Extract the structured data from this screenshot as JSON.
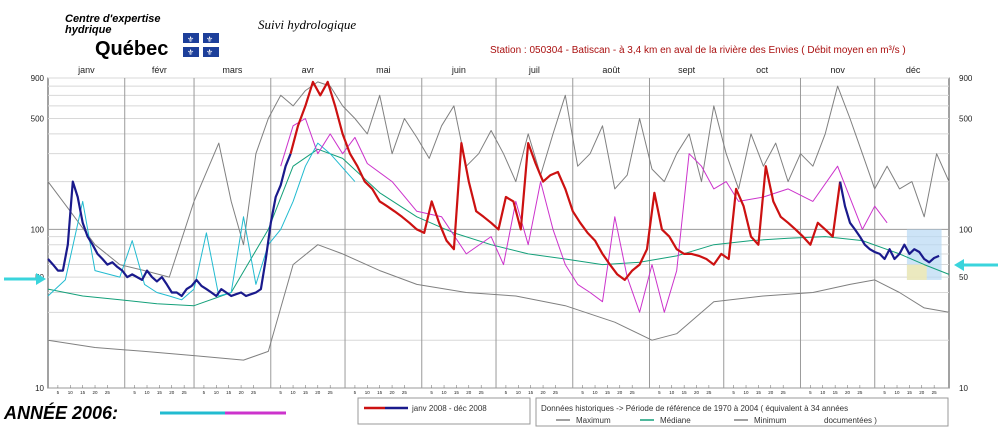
{
  "header": {
    "org_line1": "Centre d'expertise",
    "org_line2": "hydrique",
    "org_name": "Québec",
    "app_title": "Suivi hydrologique",
    "station": "Station : 050304    -    Batiscan - à 3,4 km en aval de la rivière des Envies    ( Débit moyen en m³/s )"
  },
  "footer": {
    "annee_label": "ANNÉE  2006:",
    "legend_current": "janv 2008 - déc 2008",
    "hist_text_1": "Données historiques -> Période de référence  de 1970 à 2004    ( équivalent à 34 années",
    "hist_text_2": "documentées )",
    "legend_max": "Maximum",
    "legend_median": "Médiane",
    "legend_min": "Minimum"
  },
  "colors": {
    "current_before_april": "#1a1a8c",
    "current_after_april": "#cc1111",
    "year_2006_first": "#22bbd0",
    "year_2006_second": "#cc33cc",
    "maximum": "#808080",
    "median": "#14a07a",
    "minimum": "#808080",
    "arrow": "#3ad4dc",
    "highlight_zone": "#b8d8f4",
    "highlight_zone_2": "#f2eab0"
  },
  "chart_data": {
    "type": "line",
    "y_scale": "log",
    "ylim": [
      10,
      900
    ],
    "y_ticks": [
      10,
      50,
      100,
      500,
      900
    ],
    "months": [
      "janv",
      "févr",
      "mars",
      "avr",
      "mai",
      "juin",
      "juil",
      "août",
      "sept",
      "oct",
      "nov",
      "déc"
    ],
    "day_ticks": [
      "5",
      "10",
      "15",
      "20",
      "25"
    ],
    "series": [
      {
        "name": "Maximum",
        "x": [
          1,
          10,
          20,
          30,
          40,
          50,
          60,
          70,
          75,
          80,
          85,
          90,
          95,
          100,
          105,
          110,
          115,
          120,
          125,
          130,
          135,
          140,
          145,
          150,
          155,
          160,
          165,
          170,
          175,
          180,
          185,
          190,
          195,
          200,
          205,
          210,
          215,
          220,
          225,
          230,
          235,
          240,
          245,
          250,
          255,
          260,
          265,
          270,
          275,
          280,
          285,
          290,
          295,
          300,
          305,
          310,
          315,
          320,
          325,
          330,
          335,
          340,
          345,
          350,
          355,
          360,
          365
        ],
        "y": [
          200,
          130,
          80,
          60,
          55,
          50,
          150,
          350,
          150,
          80,
          300,
          500,
          700,
          600,
          750,
          850,
          800,
          600,
          500,
          400,
          700,
          300,
          500,
          380,
          280,
          450,
          600,
          250,
          300,
          420,
          300,
          200,
          400,
          220,
          400,
          700,
          250,
          300,
          450,
          180,
          220,
          500,
          240,
          200,
          300,
          400,
          200,
          600,
          300,
          180,
          400,
          250,
          350,
          200,
          300,
          250,
          400,
          800,
          500,
          300,
          180,
          250,
          180,
          200,
          120,
          300,
          200
        ]
      },
      {
        "name": "Médiane",
        "x": [
          1,
          15,
          30,
          45,
          60,
          75,
          90,
          100,
          110,
          120,
          135,
          150,
          165,
          180,
          195,
          210,
          225,
          240,
          255,
          270,
          285,
          300,
          315,
          330,
          345,
          355,
          365
        ],
        "y": [
          42,
          38,
          36,
          34,
          33,
          40,
          100,
          250,
          320,
          280,
          170,
          120,
          95,
          80,
          70,
          65,
          60,
          62,
          68,
          80,
          85,
          88,
          90,
          85,
          70,
          60,
          52
        ]
      },
      {
        "name": "Minimum",
        "x": [
          1,
          20,
          40,
          60,
          80,
          90,
          100,
          110,
          120,
          135,
          150,
          170,
          190,
          210,
          230,
          245,
          255,
          270,
          290,
          310,
          325,
          335,
          345,
          355,
          365
        ],
        "y": [
          20,
          18,
          17,
          16,
          15,
          17,
          60,
          80,
          70,
          55,
          45,
          40,
          38,
          33,
          26,
          20,
          22,
          35,
          38,
          40,
          45,
          48,
          40,
          32,
          30
        ]
      },
      {
        "name": "",
        "x": [
          1,
          8,
          15,
          20,
          30,
          35,
          40,
          45,
          50,
          55,
          60,
          65,
          70,
          75,
          80,
          85,
          90,
          95,
          100,
          105,
          110,
          115,
          125
        ],
        "y": [
          38,
          48,
          150,
          55,
          50,
          85,
          45,
          40,
          38,
          36,
          42,
          95,
          38,
          40,
          120,
          45,
          80,
          100,
          150,
          250,
          350,
          300,
          200
        ]
      },
      {
        "name": "",
        "x": [
          95,
          100,
          105,
          110,
          115,
          120,
          125,
          130,
          140,
          150,
          160,
          170,
          180,
          185,
          190,
          195,
          200,
          205,
          210,
          215,
          220,
          225,
          230,
          235,
          240,
          245,
          250,
          255,
          260,
          265,
          270,
          275,
          280,
          290,
          300,
          310,
          320,
          330,
          335,
          340
        ],
        "y": [
          250,
          450,
          500,
          300,
          400,
          300,
          380,
          260,
          200,
          130,
          120,
          70,
          90,
          60,
          150,
          80,
          200,
          100,
          60,
          45,
          40,
          35,
          120,
          50,
          30,
          60,
          30,
          55,
          300,
          250,
          180,
          200,
          150,
          160,
          180,
          150,
          250,
          100,
          140,
          110
        ]
      },
      {
        "name": "janv 2008 - déc 2008",
        "x": [
          1,
          3,
          5,
          7,
          9,
          11,
          13,
          15,
          17,
          19,
          21,
          23,
          25,
          27,
          29,
          31,
          33,
          35,
          37,
          39,
          41,
          43,
          45,
          47,
          49,
          51,
          53,
          55,
          57,
          59,
          61,
          63,
          65,
          67,
          69,
          71,
          73,
          75,
          77,
          79,
          81,
          83,
          85,
          87,
          89,
          91,
          93,
          95,
          97,
          99
        ],
        "y": [
          65,
          60,
          55,
          55,
          80,
          200,
          160,
          110,
          90,
          80,
          70,
          65,
          60,
          62,
          58,
          55,
          50,
          52,
          50,
          48,
          55,
          50,
          47,
          50,
          45,
          40,
          40,
          38,
          42,
          44,
          48,
          44,
          42,
          40,
          38,
          42,
          40,
          38,
          39,
          40,
          38,
          39,
          40,
          42,
          65,
          110,
          160,
          190,
          250,
          300
        ]
      },
      {
        "name": "janv 2008 - déc 2008",
        "x": [
          99,
          102,
          105,
          108,
          111,
          114,
          117,
          120,
          123,
          126,
          129,
          132,
          135,
          138,
          141,
          144,
          147,
          150,
          153,
          156,
          159,
          162,
          165,
          168,
          171,
          174,
          177,
          180,
          183,
          186,
          189,
          192,
          195,
          198,
          201,
          204,
          207,
          210,
          213,
          216,
          219,
          222,
          225,
          228,
          231,
          234,
          237,
          240,
          243,
          246,
          249,
          252,
          255,
          258,
          261,
          264,
          267,
          270,
          273,
          276,
          279,
          282,
          285,
          288,
          291,
          294,
          297,
          300,
          303,
          306,
          309,
          312,
          315,
          318,
          321
        ],
        "y": [
          300,
          450,
          600,
          850,
          700,
          850,
          600,
          400,
          300,
          250,
          200,
          180,
          150,
          140,
          130,
          120,
          110,
          100,
          95,
          150,
          110,
          85,
          75,
          350,
          200,
          130,
          120,
          110,
          100,
          160,
          150,
          100,
          350,
          260,
          200,
          220,
          230,
          180,
          130,
          110,
          95,
          85,
          70,
          60,
          52,
          48,
          55,
          60,
          75,
          170,
          100,
          90,
          75,
          70,
          70,
          68,
          65,
          60,
          70,
          65,
          180,
          140,
          90,
          80,
          250,
          150,
          120,
          110,
          100,
          90,
          80,
          110,
          100,
          90,
          200
        ]
      },
      {
        "name": "janv 2008 - déc 2008",
        "x": [
          321,
          323,
          325,
          327,
          329,
          331,
          333,
          335,
          337,
          339,
          341,
          343,
          345,
          347,
          349,
          351,
          353,
          355,
          357,
          359,
          361
        ],
        "y": [
          200,
          140,
          110,
          100,
          90,
          80,
          75,
          72,
          70,
          65,
          75,
          65,
          70,
          80,
          70,
          75,
          72,
          65,
          62,
          66,
          68
        ]
      }
    ]
  }
}
